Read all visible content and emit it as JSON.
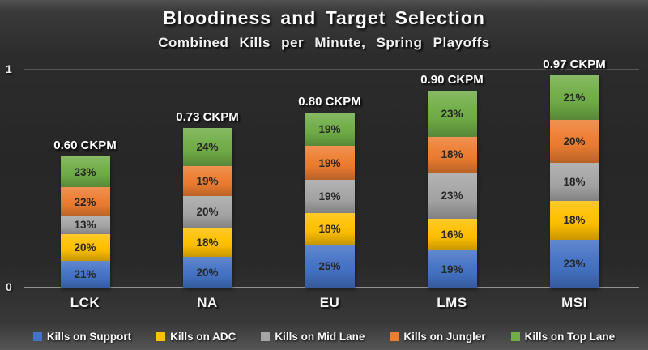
{
  "colors": {
    "gridline": "#57585a",
    "axis_line": "#929292",
    "title_text": "#fdfdfd",
    "percent_text": "#262626"
  },
  "chart_data": {
    "type": "bar",
    "stacked": true,
    "title": "Bloodiness and Target Selection",
    "subtitle": "Combined Kills per Minute, Spring Playoffs",
    "categories": [
      "LCK",
      "NA",
      "EU",
      "LMS",
      "MSI"
    ],
    "totals": [
      0.6,
      0.73,
      0.8,
      0.9,
      0.97
    ],
    "total_labels": [
      "0.60 CKPM",
      "0.73 CKPM",
      "0.80 CKPM",
      "0.90 CKPM",
      "0.97 CKPM"
    ],
    "series": [
      {
        "name": "Kills on Support",
        "color": "#4472C4",
        "percents": [
          21,
          20,
          25,
          19,
          23
        ]
      },
      {
        "name": "Kills on ADC",
        "color": "#FFC000",
        "percents": [
          20,
          18,
          18,
          16,
          18
        ]
      },
      {
        "name": "Kills on Mid Lane",
        "color": "#A5A5A5",
        "percents": [
          13,
          20,
          19,
          23,
          18
        ]
      },
      {
        "name": "Kills on Jungler",
        "color": "#ED7D31",
        "percents": [
          22,
          19,
          19,
          18,
          20
        ]
      },
      {
        "name": "Kills on Top Lane",
        "color": "#70AD47",
        "percents": [
          23,
          24,
          19,
          23,
          21
        ]
      }
    ],
    "ylabel": "",
    "xlabel": "",
    "ylim": [
      0,
      1
    ],
    "ytick_labels": [
      "0",
      "1"
    ],
    "grid": "horizontal line at y=1 only",
    "legend_position": "bottom"
  }
}
